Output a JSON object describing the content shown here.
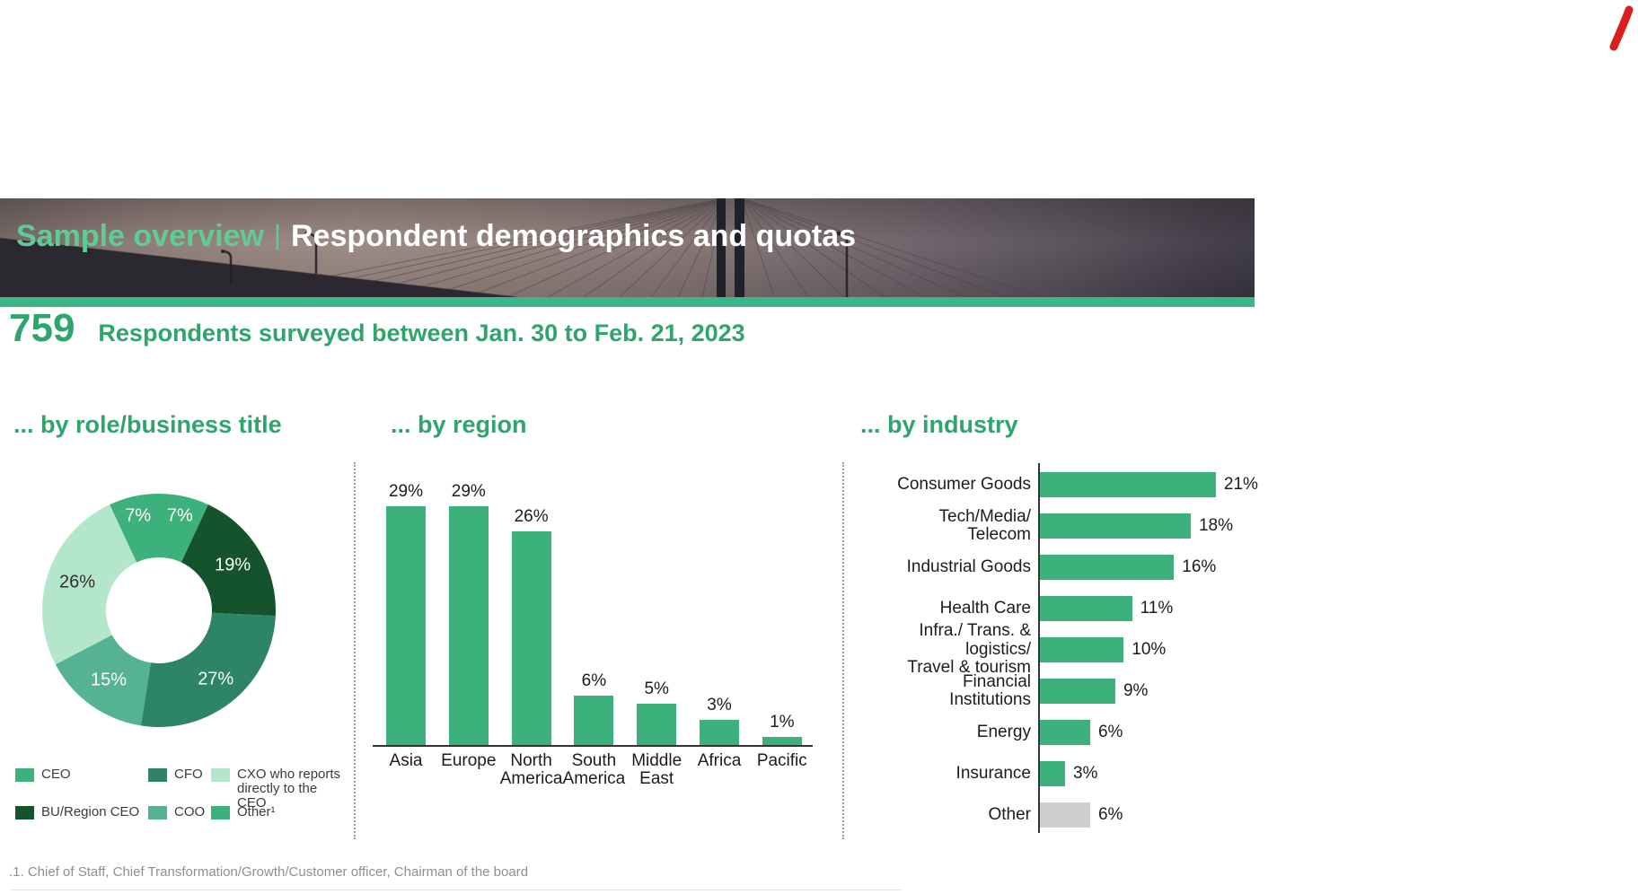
{
  "brand": {
    "logo_color": "#DC1D1D"
  },
  "header": {
    "title_highlight": "Sample overview",
    "separator": "|",
    "title_main": "Respondent demographics and quotas",
    "highlight_color": "#5FCB95",
    "strip_color": "#3EB489"
  },
  "stats": {
    "respondent_count": "759",
    "description": "Respondents surveyed between Jan. 30 to Feb. 21, 2023",
    "accent_color": "#2EA56B"
  },
  "sections": {
    "role_title": "... by role/business title",
    "region_title": "... by region",
    "industry_title": "... by industry"
  },
  "chart_data": [
    {
      "type": "pie",
      "subtype": "donut",
      "title": "... by role/business title",
      "slices": [
        {
          "name": "CEO",
          "value": 7,
          "color": "#3CB17B",
          "label": "7%",
          "label_color": "#ffffff"
        },
        {
          "name": "BU/Region CEO",
          "value": 19,
          "color": "#14532B",
          "label": "19%",
          "label_color": "#ffffff"
        },
        {
          "name": "CFO",
          "value": 27,
          "color": "#2D8565",
          "label": "27%",
          "label_color": "#ffffff"
        },
        {
          "name": "COO",
          "value": 15,
          "color": "#55B292",
          "label": "15%",
          "label_color": "#ffffff"
        },
        {
          "name": "CXO who reports directly to the CEO",
          "value": 26,
          "color": "#B4E6CB",
          "label": "26%",
          "label_color": "#2f2f2f"
        },
        {
          "name": "Other",
          "value": 7,
          "color": "#3CB17B",
          "label": "7%",
          "label_color": "#ffffff"
        }
      ],
      "legend_position": "bottom",
      "legend": [
        {
          "label": "CEO",
          "color": "#3CB17B"
        },
        {
          "label": "CFO",
          "color": "#2D8565"
        },
        {
          "label": "CXO who reports directly to the CEO",
          "color": "#B4E6CB"
        },
        {
          "label": "BU/Region CEO",
          "color": "#14532B"
        },
        {
          "label": "COO",
          "color": "#55B292"
        },
        {
          "label": "Other¹",
          "color": "#3CB17B"
        }
      ]
    },
    {
      "type": "bar",
      "title": "... by region",
      "bar_color": "#3CB17B",
      "categories": [
        [
          "Asia"
        ],
        [
          "Europe"
        ],
        [
          "North",
          "America"
        ],
        [
          "South",
          "America"
        ],
        [
          "Middle",
          "East"
        ],
        [
          "Africa"
        ],
        [
          "Pacific"
        ]
      ],
      "values": [
        29,
        29,
        26,
        6,
        5,
        3,
        1
      ],
      "value_labels": [
        "29%",
        "29%",
        "26%",
        "6%",
        "5%",
        "3%",
        "1%"
      ],
      "unit": "%",
      "ylim": [
        0,
        31
      ],
      "grid": false
    },
    {
      "type": "bar",
      "subtype": "horizontal",
      "title": "... by industry",
      "categories": [
        [
          "Consumer Goods"
        ],
        [
          "Tech/Media/",
          "Telecom"
        ],
        [
          "Industrial Goods"
        ],
        [
          "Health Care"
        ],
        [
          "Infra./ Trans. & logistics/",
          "Travel & tourism"
        ],
        [
          "Financial",
          "Institutions"
        ],
        [
          "Energy"
        ],
        [
          "Insurance"
        ],
        [
          "Other"
        ]
      ],
      "values": [
        21,
        18,
        16,
        11,
        10,
        9,
        6,
        3,
        6
      ],
      "value_labels": [
        "21%",
        "18%",
        "16%",
        "11%",
        "10%",
        "9%",
        "6%",
        "3%",
        "6%"
      ],
      "colors": [
        "#3CB17B",
        "#3CB17B",
        "#3CB17B",
        "#3CB17B",
        "#3CB17B",
        "#3CB17B",
        "#3CB17B",
        "#3CB17B",
        "#CFCFCF"
      ],
      "unit": "%",
      "xlim": [
        0,
        23
      ],
      "grid": false
    }
  ],
  "footnote": ".1. Chief of Staff, Chief Transformation/Growth/Customer officer, Chairman of the board"
}
